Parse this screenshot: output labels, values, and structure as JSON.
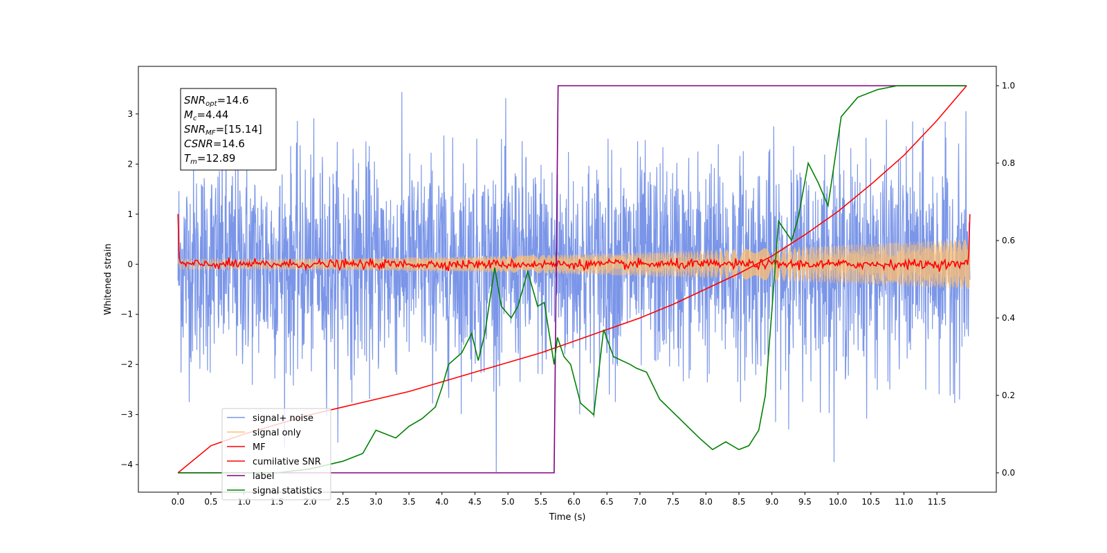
{
  "chart_data": {
    "type": "line",
    "xlabel": "Time (s)",
    "ylabel": "Whitened strain",
    "xlim": [
      -0.6,
      12.4
    ],
    "ylim": [
      -4.55,
      3.95
    ],
    "y2lim": [
      -0.05,
      1.05
    ],
    "xticks": [
      "0.0",
      "0.5",
      "1.0",
      "1.5",
      "2.0",
      "2.5",
      "3.0",
      "3.5",
      "4.0",
      "4.5",
      "5.0",
      "5.5",
      "6.0",
      "6.5",
      "7.0",
      "7.5",
      "8.0",
      "8.5",
      "9.0",
      "9.5",
      "10.0",
      "10.5",
      "11.0",
      "11.5"
    ],
    "yticks": [
      "3",
      "2",
      "1",
      "0",
      "−1",
      "−2",
      "−3",
      "−4"
    ],
    "y2ticks": [
      "1.0",
      "0.8",
      "0.6",
      "0.4",
      "0.2",
      "0.0"
    ],
    "legend_position": "lower-left",
    "legend": [
      "signal+ noise",
      "signal only",
      "MF",
      "cumilative SNR",
      "label",
      "signal statistics"
    ],
    "annotation": {
      "snr_opt": {
        "main": "SNR",
        "sub": "opt",
        "value": "=14.6"
      },
      "mc": {
        "main": "M",
        "sub": "c",
        "value": "=4.44"
      },
      "snr_mf": {
        "main": "SNR",
        "sub": "MF",
        "value": "=[15.14]"
      },
      "csnr": {
        "main": "CSNR",
        "sub": "",
        "value": "=14.6"
      },
      "tm": {
        "main": "T",
        "sub": "m",
        "value": "=12.89"
      }
    },
    "series": [
      {
        "name": "signal+ noise",
        "axis": "left",
        "color": "#7b96e8",
        "x_range": [
          0,
          12.0
        ],
        "amplitude_range": [
          -4.15,
          3.55
        ]
      },
      {
        "name": "signal only",
        "axis": "left",
        "color": "#ffbf70",
        "x_range": [
          0,
          12.0
        ],
        "envelope_start": 0.1,
        "envelope_end": 0.5
      },
      {
        "name": "MF",
        "axis": "left",
        "color": "#ff0000",
        "x_range": [
          0,
          12.0
        ],
        "y_start": 1.0,
        "y_end": 1.0
      },
      {
        "name": "cumilative SNR",
        "axis": "right",
        "color": "#ff0000",
        "x": [
          0,
          0.5,
          1.0,
          1.5,
          2.0,
          2.5,
          3.0,
          3.5,
          4.0,
          4.5,
          5.0,
          5.5,
          6.0,
          6.5,
          7.0,
          7.5,
          8.0,
          8.5,
          9.0,
          9.5,
          10.0,
          10.5,
          11.0,
          11.5,
          11.95
        ],
        "y": [
          0.0,
          0.07,
          0.1,
          0.125,
          0.15,
          0.17,
          0.19,
          0.21,
          0.235,
          0.26,
          0.285,
          0.31,
          0.34,
          0.37,
          0.4,
          0.435,
          0.475,
          0.515,
          0.56,
          0.615,
          0.675,
          0.745,
          0.82,
          0.91,
          1.0
        ]
      },
      {
        "name": "label",
        "axis": "right",
        "color": "#800080",
        "x": [
          0,
          5.7,
          5.76,
          11.95
        ],
        "y": [
          0.0,
          0.0,
          1.0,
          1.0
        ]
      },
      {
        "name": "signal statistics",
        "axis": "right",
        "color": "#008000",
        "x": [
          0,
          0.5,
          1.0,
          1.5,
          2.0,
          2.5,
          2.8,
          3.0,
          3.3,
          3.5,
          3.7,
          3.9,
          4.0,
          4.1,
          4.3,
          4.45,
          4.55,
          4.65,
          4.8,
          4.9,
          5.05,
          5.15,
          5.3,
          5.45,
          5.55,
          5.7,
          5.75,
          5.85,
          5.95,
          6.1,
          6.3,
          6.45,
          6.6,
          6.85,
          6.95,
          7.1,
          7.3,
          7.6,
          7.9,
          8.1,
          8.3,
          8.5,
          8.65,
          8.8,
          8.9,
          9.0,
          9.1,
          9.3,
          9.4,
          9.55,
          9.7,
          9.85,
          10.05,
          10.3,
          10.6,
          10.9,
          11.2,
          11.5,
          11.95
        ],
        "y": [
          0.0,
          0.0,
          0.0,
          0.0,
          0.01,
          0.03,
          0.05,
          0.11,
          0.09,
          0.12,
          0.14,
          0.17,
          0.22,
          0.28,
          0.31,
          0.36,
          0.29,
          0.36,
          0.53,
          0.43,
          0.4,
          0.43,
          0.52,
          0.43,
          0.44,
          0.28,
          0.35,
          0.3,
          0.28,
          0.18,
          0.15,
          0.37,
          0.3,
          0.28,
          0.27,
          0.26,
          0.19,
          0.14,
          0.09,
          0.06,
          0.08,
          0.06,
          0.07,
          0.11,
          0.2,
          0.42,
          0.65,
          0.6,
          0.66,
          0.8,
          0.75,
          0.69,
          0.92,
          0.97,
          0.99,
          1.0,
          1.0,
          1.0,
          1.0
        ]
      }
    ]
  }
}
